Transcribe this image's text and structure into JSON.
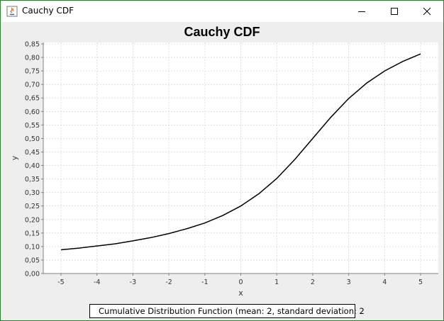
{
  "window": {
    "title": "Cauchy CDF"
  },
  "chart_data": {
    "type": "line",
    "title": "Cauchy CDF",
    "xlabel": "x",
    "ylabel": "y",
    "xlim": [
      -5,
      5
    ],
    "ylim": [
      0,
      0.85
    ],
    "xticks": [
      "-5",
      "-4",
      "-3",
      "-2",
      "-1",
      "0",
      "1",
      "2",
      "3",
      "4",
      "5"
    ],
    "yticks": [
      "0,00",
      "0,05",
      "0,10",
      "0,15",
      "0,20",
      "0,25",
      "0,30",
      "0,35",
      "0,40",
      "0,45",
      "0,50",
      "0,55",
      "0,60",
      "0,65",
      "0,70",
      "0,75",
      "0,80",
      "0,85"
    ],
    "grid": true,
    "legend_position": "bottom",
    "series": [
      {
        "name": "Cumulative Distribution Function (mean: 2, standard deviation: 2",
        "color": "#000000",
        "x": [
          -5,
          -4.5,
          -4,
          -3.5,
          -3,
          -2.5,
          -2,
          -1.5,
          -1,
          -0.5,
          0,
          0.5,
          1,
          1.5,
          2,
          2.5,
          3,
          3.5,
          4,
          4.5,
          5
        ],
        "y": [
          0.088,
          0.094,
          0.102,
          0.11,
          0.121,
          0.133,
          0.148,
          0.166,
          0.187,
          0.215,
          0.25,
          0.295,
          0.352,
          0.422,
          0.5,
          0.578,
          0.648,
          0.705,
          0.75,
          0.785,
          0.813
        ]
      }
    ]
  }
}
